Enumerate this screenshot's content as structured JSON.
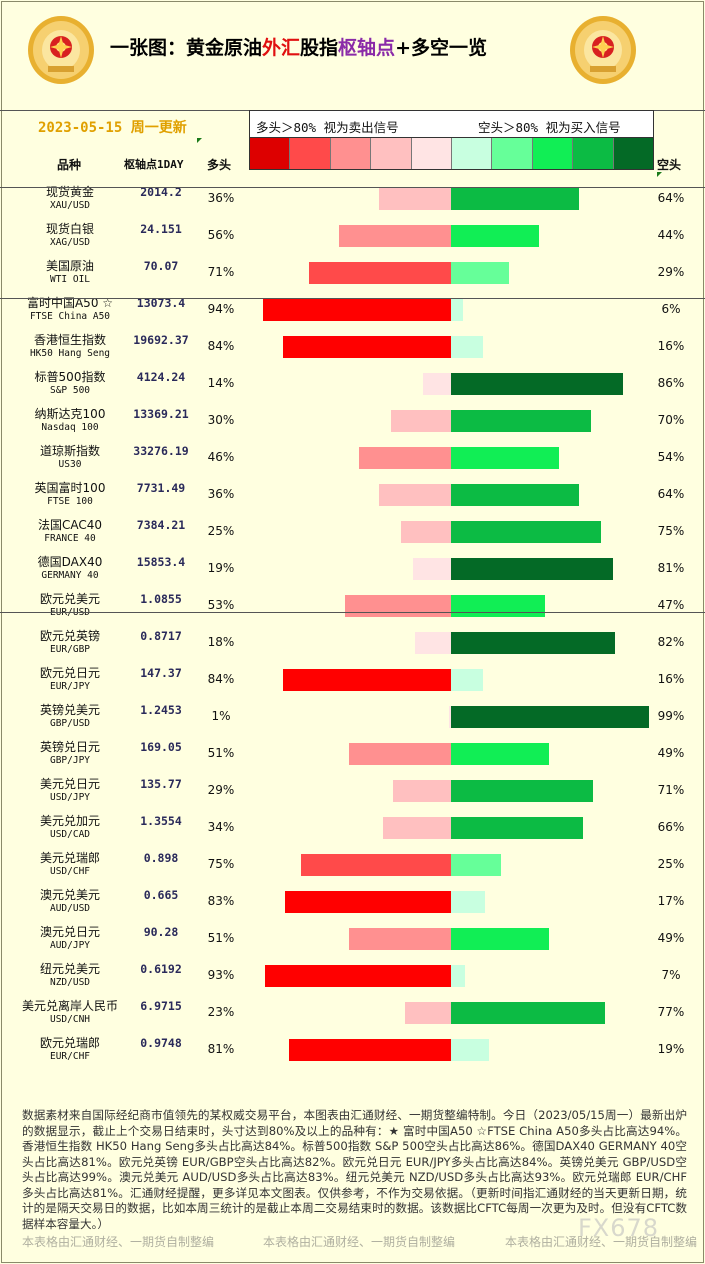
{
  "header": {
    "title_pre": "一张图：黄金原油",
    "title_red": "外汇",
    "title_mid": "股指",
    "title_purple": "枢轴点",
    "title_end": "+多空一览",
    "date_label": "2023-05-15 周一更新",
    "legend_left": "多头＞80% 视为卖出信号",
    "legend_right": "空头＞80% 视为买入信号",
    "col_name": "品种",
    "col_pivot": "枢轴点1DAY",
    "col_long": "多头",
    "col_short": "空头"
  },
  "colors": {
    "swatches": [
      "#dd0000",
      "#ff4a4a",
      "#ff9090",
      "#ffc0c0",
      "#ffe4e4",
      "#c8ffe0",
      "#66ff99",
      "#11ee55",
      "#0cbb44",
      "#046a26"
    ],
    "long_scale": [
      "#ffe4e4",
      "#ffc0c0",
      "#ff9090",
      "#ff4a4a",
      "#ff0000"
    ],
    "short_scale": [
      "#c8ffe0",
      "#66ff99",
      "#11ee55",
      "#0cbb44",
      "#046a26"
    ]
  },
  "chart_data": {
    "type": "bar",
    "title": "一张图：黄金原油外汇股指枢轴点+多空一览",
    "xlabel": "",
    "ylabel": "",
    "ylim": [
      0,
      100
    ],
    "categories": [
      {
        "cn": "现货黄金",
        "en": "XAU/USD",
        "pivot": "2014.2",
        "group": 1
      },
      {
        "cn": "现货白银",
        "en": "XAG/USD",
        "pivot": "24.151",
        "group": 1
      },
      {
        "cn": "美国原油",
        "en": "WTI OIL",
        "pivot": "70.07",
        "group": 1
      },
      {
        "cn": "富时中国A50 ☆",
        "en": "FTSE China A50",
        "pivot": "13073.4",
        "group": 2
      },
      {
        "cn": "香港恒生指数",
        "en": "HK50 Hang Seng",
        "pivot": "19692.37",
        "group": 2
      },
      {
        "cn": "标普500指数",
        "en": "S&P 500",
        "pivot": "4124.24",
        "group": 2
      },
      {
        "cn": "纳斯达克100",
        "en": "Nasdaq 100",
        "pivot": "13369.21",
        "group": 2
      },
      {
        "cn": "道琼斯指数",
        "en": "US30",
        "pivot": "33276.19",
        "group": 2
      },
      {
        "cn": "英国富时100",
        "en": "FTSE 100",
        "pivot": "7731.49",
        "group": 2
      },
      {
        "cn": "法国CAC40",
        "en": "FRANCE 40",
        "pivot": "7384.21",
        "group": 2
      },
      {
        "cn": "德国DAX40",
        "en": "GERMANY 40",
        "pivot": "15853.4",
        "group": 2
      },
      {
        "cn": "欧元兑美元",
        "en": "EUR/USD",
        "pivot": "1.0855",
        "group": 3
      },
      {
        "cn": "欧元兑英镑",
        "en": "EUR/GBP",
        "pivot": "0.8717",
        "group": 3
      },
      {
        "cn": "欧元兑日元",
        "en": "EUR/JPY",
        "pivot": "147.37",
        "group": 3
      },
      {
        "cn": "英镑兑美元",
        "en": "GBP/USD",
        "pivot": "1.2453",
        "group": 3
      },
      {
        "cn": "英镑兑日元",
        "en": "GBP/JPY",
        "pivot": "169.05",
        "group": 3
      },
      {
        "cn": "美元兑日元",
        "en": "USD/JPY",
        "pivot": "135.77",
        "group": 3
      },
      {
        "cn": "美元兑加元",
        "en": "USD/CAD",
        "pivot": "1.3554",
        "group": 3
      },
      {
        "cn": "美元兑瑞郎",
        "en": "USD/CHF",
        "pivot": "0.898",
        "group": 3
      },
      {
        "cn": "澳元兑美元",
        "en": "AUD/USD",
        "pivot": "0.665",
        "group": 3
      },
      {
        "cn": "澳元兑日元",
        "en": "AUD/JPY",
        "pivot": "90.28",
        "group": 3
      },
      {
        "cn": "纽元兑美元",
        "en": "NZD/USD",
        "pivot": "0.6192",
        "group": 3
      },
      {
        "cn": "美元兑离岸人民币",
        "en": "USD/CNH",
        "pivot": "6.9715",
        "group": 3
      },
      {
        "cn": "欧元兑瑞郎",
        "en": "EUR/CHF",
        "pivot": "0.9748",
        "group": 3
      }
    ],
    "series": [
      {
        "name": "多头",
        "values": [
          36,
          56,
          71,
          94,
          84,
          14,
          30,
          46,
          36,
          25,
          19,
          53,
          18,
          84,
          1,
          51,
          29,
          34,
          75,
          83,
          51,
          93,
          23,
          81
        ]
      },
      {
        "name": "空头",
        "values": [
          64,
          44,
          29,
          6,
          16,
          86,
          70,
          54,
          64,
          75,
          81,
          47,
          82,
          16,
          99,
          49,
          71,
          66,
          25,
          17,
          49,
          7,
          77,
          19
        ]
      }
    ]
  },
  "footer": {
    "text": "数据素材来自国际经纪商市值领先的某权威交易平台，本图表由汇通财经、一期货整编特制。今日（2023/05/15周一）最新出炉的数据显示，截止上个交易日结束时，头寸达到80%及以上的品种有：★ 富时中国A50 ☆FTSE China A50多头占比高达94%。香港恒生指数 HK50 Hang Seng多头占比高达84%。标普500指数 S&P 500空头占比高达86%。德国DAX40 GERMANY 40空头占比高达81%。欧元兑英镑 EUR/GBP空头占比高达82%。欧元兑日元 EUR/JPY多头占比高达84%。英镑兑美元 GBP/USD空头占比高达99%。澳元兑美元 AUD/USD多头占比高达83%。纽元兑美元 NZD/USD多头占比高达93%。欧元兑瑞郎 EUR/CHF多头占比高达81%。汇通财经提醒，更多详见本文图表。仅供参考，不作为交易依据。（更新时间指汇通财经的当天更新日期，统计的是隔天交易日的数据，比如本周三统计的是截止本周二交易结束时的数据。该数据比CFTC每周一次更为及时。但没有CFTC数据样本容量大。）",
    "credit1": "本表格由汇通财经、一期货自制整编",
    "credit2": "本表格由汇通财经、一期货自制整编",
    "credit3": "本表格由汇通财经、一期货自制整编",
    "watermark": "FX678"
  }
}
